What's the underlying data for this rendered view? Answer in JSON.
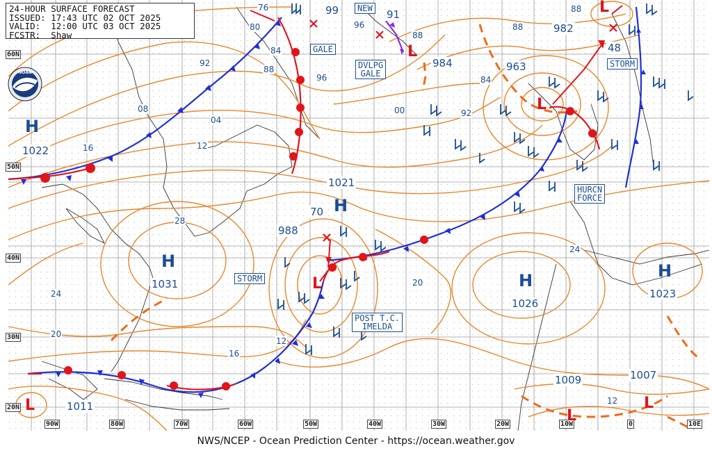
{
  "header": {
    "title": "24-HOUR SURFACE FORECAST",
    "issued": "ISSUED: 17:43 UTC 02 OCT 2025",
    "valid": "VALID:  12:00 UTC 03 OCT 2025",
    "forecaster": "FCSTR:  Shaw"
  },
  "footer": "NWS/NCEP - Ocean Prediction Center - https://ocean.weather.gov",
  "logo": "NOAA",
  "lat_labels": [
    "60N",
    "50N",
    "40N",
    "30N",
    "20N"
  ],
  "lon_labels": [
    "90W",
    "80W",
    "70W",
    "60W",
    "50W",
    "40W",
    "30W",
    "20W",
    "10W",
    "0",
    "10E"
  ],
  "high_symbol": "H",
  "low_symbol": "L",
  "highs": [
    "1022",
    "1031",
    "1021",
    "1026",
    "1023"
  ],
  "lows": [
    "1011",
    "988",
    "963",
    "982",
    "1009",
    "1007"
  ],
  "warnings": {
    "storm_w": "STORM",
    "storm_e": "STORM",
    "gale": "GALE",
    "dvlpg_gale": "DVLPG\nGALE",
    "hurcn_force": "HURCN\nFORCE",
    "post_tc": "POST T.C.\nIMELDA",
    "new": "NEW"
  },
  "isobar_labels": [
    "76",
    "80",
    "84",
    "88",
    "92",
    "96",
    "08",
    "04",
    "12",
    "16",
    "28",
    "24",
    "20",
    "16",
    "12",
    "00",
    "92",
    "84",
    "88",
    "88",
    "96",
    "99",
    "91",
    "984",
    "70",
    "20",
    "24",
    "12",
    "48"
  ],
  "colors": {
    "isobar": "#e8862a",
    "cold_front": "#1f2fd4",
    "warm_front": "#e0151b",
    "label_blue": "#1a4c94",
    "trough": "#f06a1a",
    "occluded": "#8a2ae0"
  }
}
